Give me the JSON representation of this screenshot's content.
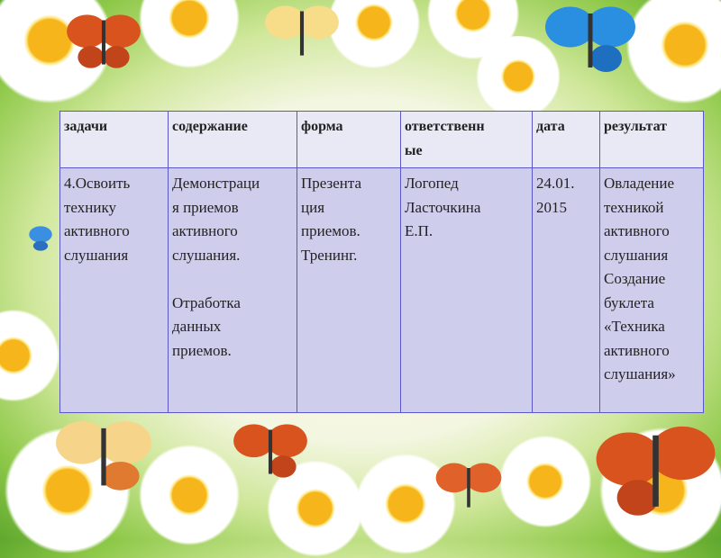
{
  "table": {
    "headers": [
      "задачи",
      "содержание",
      "форма",
      "ответственн\nые",
      "дата",
      "результат"
    ],
    "rows": [
      [
        "4.Освоить\nтехнику\nактивного\nслушания",
        "Демонстраци\nя приемов\nактивного\nслушания.\n\nОтработка\nданных\nприемов.",
        "Презента\nция\nприемов.\nТренинг.",
        "Логопед\nЛасточкина\nЕ.П.",
        "24.01.\n2015",
        "Овладение\nтехникой\nактивного\nслушания\nСоздание\nбуклета\n«Техника\nактивного\nслушания»"
      ]
    ]
  },
  "colors": {
    "header_bg": "#e9e9f6",
    "cell_bg": "#cfcdec",
    "border": "#5b57c9"
  }
}
